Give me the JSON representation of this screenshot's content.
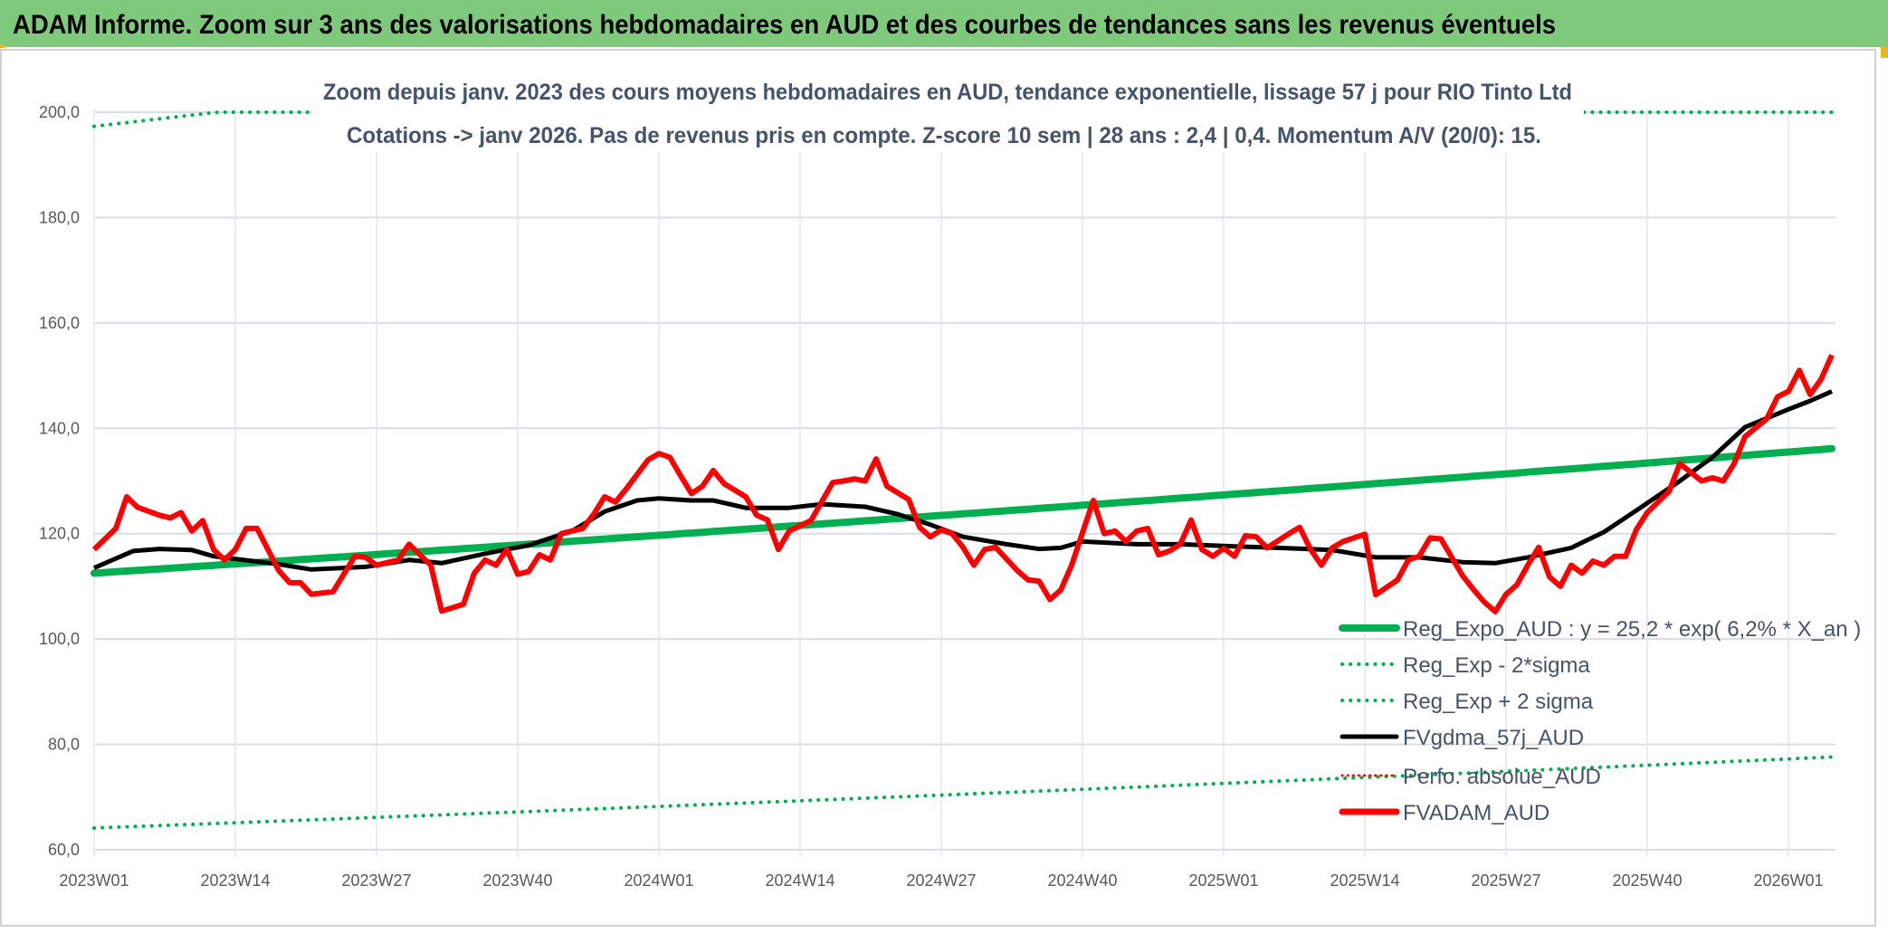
{
  "header": {
    "title": "ADAM Informe. Zoom sur 3 ans des valorisations hebdomadaires en AUD et des courbes de tendances sans les revenus éventuels"
  },
  "colors": {
    "title_bar": "#7fc97c",
    "regression": "#00b050",
    "band": "#00b050",
    "moving_average": "#000000",
    "price": "#ff0000",
    "perfo": "#ff0000"
  },
  "chart_data": {
    "type": "line",
    "title": "Zoom depuis janv. 2023 des cours moyens hebdomadaires en AUD, tendance exponentielle, lissage 57 j pour RIO Tinto Ltd",
    "subtitle": "Cotations -> janv 2026. Pas de revenus pris en compte. Z-score 10 sem | 28 ans : 2,4 | 0,4. Momentum A/V (20/0): 15.",
    "xlabel": "",
    "ylabel": "",
    "ylim": [
      60,
      200
    ],
    "yticks": [
      "60,0",
      "80,0",
      "100,0",
      "120,0",
      "140,0",
      "160,0",
      "180,0",
      "200,0"
    ],
    "ytick_values": [
      60,
      80,
      100,
      120,
      140,
      160,
      180,
      200
    ],
    "x_unit": "week index since 2023W01",
    "xlim": [
      0,
      160
    ],
    "xticks": [
      {
        "week": 0,
        "label": "2023W01"
      },
      {
        "week": 13,
        "label": "2023W14"
      },
      {
        "week": 26,
        "label": "2023W27"
      },
      {
        "week": 39,
        "label": "2023W40"
      },
      {
        "week": 52,
        "label": "2024W01"
      },
      {
        "week": 65,
        "label": "2024W14"
      },
      {
        "week": 78,
        "label": "2024W27"
      },
      {
        "week": 91,
        "label": "2024W40"
      },
      {
        "week": 104,
        "label": "2025W01"
      },
      {
        "week": 117,
        "label": "2025W14"
      },
      {
        "week": 130,
        "label": "2025W27"
      },
      {
        "week": 143,
        "label": "2025W40"
      },
      {
        "week": 156,
        "label": "2026W01"
      }
    ],
    "grid": true,
    "legend_position": "bottom-right",
    "regression": {
      "start_value": 112.5,
      "annual_growth": 0.062,
      "lower_band_factor": 0.57,
      "upper_band_factor": 1.754
    },
    "series": [
      {
        "name": "Reg_Expo_AUD : y = 25,2 * exp( 6,2% *  X_an )",
        "style": "solid-thick",
        "color": "#00b050"
      },
      {
        "name": "Reg_Exp - 2*sigma",
        "style": "dotted",
        "color": "#00b050"
      },
      {
        "name": "Reg_Exp + 2 sigma",
        "style": "dotted",
        "color": "#00b050"
      },
      {
        "name": "FVgdma_57j_AUD",
        "style": "solid",
        "color": "#000000",
        "points": [
          [
            0,
            113.5
          ],
          [
            3.6,
            116.7
          ],
          [
            6,
            117.1
          ],
          [
            9,
            116.9
          ],
          [
            11,
            115.7
          ],
          [
            17,
            114.2
          ],
          [
            20,
            113.2
          ],
          [
            25,
            113.7
          ],
          [
            29,
            115
          ],
          [
            32,
            114.4
          ],
          [
            36,
            116.2
          ],
          [
            40,
            117.8
          ],
          [
            44,
            120.5
          ],
          [
            47,
            124.2
          ],
          [
            50,
            126.3
          ],
          [
            52,
            126.7
          ],
          [
            55,
            126.3
          ],
          [
            57,
            126.3
          ],
          [
            60,
            124.9
          ],
          [
            64,
            124.9
          ],
          [
            67,
            125.6
          ],
          [
            71,
            125.1
          ],
          [
            74,
            123.7
          ],
          [
            77,
            121.7
          ],
          [
            80,
            119.4
          ],
          [
            84,
            118
          ],
          [
            87,
            117.1
          ],
          [
            89,
            117.3
          ],
          [
            91,
            118.5
          ],
          [
            96,
            118
          ],
          [
            100,
            118
          ],
          [
            105,
            117.6
          ],
          [
            109,
            117.3
          ],
          [
            114,
            116.9
          ],
          [
            118,
            115.5
          ],
          [
            122,
            115.5
          ],
          [
            126,
            114.6
          ],
          [
            129,
            114.4
          ],
          [
            132,
            115.5
          ],
          [
            136,
            117.3
          ],
          [
            139,
            120.3
          ],
          [
            142,
            124.4
          ],
          [
            146,
            130
          ],
          [
            149,
            134.5
          ],
          [
            152,
            140.2
          ],
          [
            156,
            143.6
          ],
          [
            158,
            145.2
          ],
          [
            160,
            147
          ]
        ]
      },
      {
        "name": "Perfo. absolue_AUD",
        "style": "dotted",
        "color": "#ff0000"
      },
      {
        "name": "FVADAM_AUD",
        "style": "solid",
        "color": "#ff0000",
        "points": [
          [
            0,
            117
          ],
          [
            2,
            121
          ],
          [
            3,
            127
          ],
          [
            4,
            125
          ],
          [
            6,
            123.5
          ],
          [
            7,
            123
          ],
          [
            8,
            124
          ],
          [
            9,
            120.5
          ],
          [
            10,
            122.5
          ],
          [
            11,
            117
          ],
          [
            12,
            115
          ],
          [
            13,
            117
          ],
          [
            14,
            121
          ],
          [
            15,
            121
          ],
          [
            17,
            113
          ],
          [
            18,
            110.7
          ],
          [
            19,
            110.7
          ],
          [
            20,
            108.5
          ],
          [
            22,
            109
          ],
          [
            24,
            115.7
          ],
          [
            25,
            115.5
          ],
          [
            26,
            114
          ],
          [
            28,
            115
          ],
          [
            29,
            118
          ],
          [
            31,
            114
          ],
          [
            32,
            105.3
          ],
          [
            34,
            106.6
          ],
          [
            35,
            112.5
          ],
          [
            36,
            115
          ],
          [
            37,
            114
          ],
          [
            38,
            117
          ],
          [
            39,
            112.3
          ],
          [
            40,
            112.8
          ],
          [
            41,
            116
          ],
          [
            42,
            115
          ],
          [
            43,
            120
          ],
          [
            45,
            121
          ],
          [
            46,
            123.7
          ],
          [
            47,
            127
          ],
          [
            48,
            126
          ],
          [
            49,
            128.5
          ],
          [
            51,
            134
          ],
          [
            52,
            135.2
          ],
          [
            53,
            134.5
          ],
          [
            54,
            131
          ],
          [
            55,
            127.6
          ],
          [
            56,
            129
          ],
          [
            57,
            132
          ],
          [
            58,
            129.5
          ],
          [
            60,
            127
          ],
          [
            61,
            123.5
          ],
          [
            62,
            122.6
          ],
          [
            63,
            117
          ],
          [
            64,
            120.5
          ],
          [
            65,
            121.5
          ],
          [
            66,
            122.5
          ],
          [
            68,
            129.7
          ],
          [
            69,
            130
          ],
          [
            70,
            130.4
          ],
          [
            71,
            130
          ],
          [
            72,
            134.2
          ],
          [
            73,
            129
          ],
          [
            75,
            126.5
          ],
          [
            76,
            121.2
          ],
          [
            77,
            119.4
          ],
          [
            78,
            120.7
          ],
          [
            79,
            120
          ],
          [
            80,
            117.4
          ],
          [
            81,
            114
          ],
          [
            82,
            117
          ],
          [
            83,
            117.4
          ],
          [
            85,
            113
          ],
          [
            86,
            111.2
          ],
          [
            87,
            111
          ],
          [
            88,
            107.5
          ],
          [
            89,
            109.3
          ],
          [
            90,
            114
          ],
          [
            92,
            126.3
          ],
          [
            93,
            120
          ],
          [
            94,
            120.5
          ],
          [
            95,
            118.5
          ],
          [
            96,
            120.5
          ],
          [
            97,
            121
          ],
          [
            98,
            116
          ],
          [
            99,
            116.7
          ],
          [
            100,
            118
          ],
          [
            101,
            122.6
          ],
          [
            102,
            117
          ],
          [
            103,
            115.7
          ],
          [
            104,
            117.2
          ],
          [
            105,
            115.7
          ],
          [
            106,
            119.6
          ],
          [
            107,
            119.4
          ],
          [
            108,
            117.3
          ],
          [
            110,
            120
          ],
          [
            111,
            121.2
          ],
          [
            112,
            117
          ],
          [
            113,
            114
          ],
          [
            114,
            117.3
          ],
          [
            115,
            118.5
          ],
          [
            117,
            119.9
          ],
          [
            118,
            108.4
          ],
          [
            120,
            111.2
          ],
          [
            121,
            115
          ],
          [
            122,
            115.7
          ],
          [
            123,
            119.2
          ],
          [
            124,
            119
          ],
          [
            126,
            112
          ],
          [
            127,
            109.4
          ],
          [
            128,
            107
          ],
          [
            129,
            105.2
          ],
          [
            130,
            108.5
          ],
          [
            131,
            110.3
          ],
          [
            132,
            114
          ],
          [
            133,
            117.4
          ],
          [
            134,
            111.8
          ],
          [
            135,
            110
          ],
          [
            136,
            114
          ],
          [
            137,
            112.5
          ],
          [
            138,
            114.8
          ],
          [
            139,
            114
          ],
          [
            140,
            115.7
          ],
          [
            141,
            115.7
          ],
          [
            142,
            120.8
          ],
          [
            143,
            124
          ],
          [
            145,
            128
          ],
          [
            146,
            133.3
          ],
          [
            148,
            130
          ],
          [
            149,
            130.6
          ],
          [
            150,
            130
          ],
          [
            151,
            133.3
          ],
          [
            152,
            138.4
          ],
          [
            154,
            141.8
          ],
          [
            155,
            146
          ],
          [
            156,
            147
          ],
          [
            157,
            151
          ],
          [
            158,
            146.4
          ],
          [
            159,
            149.3
          ],
          [
            160,
            153.9
          ]
        ]
      }
    ]
  }
}
